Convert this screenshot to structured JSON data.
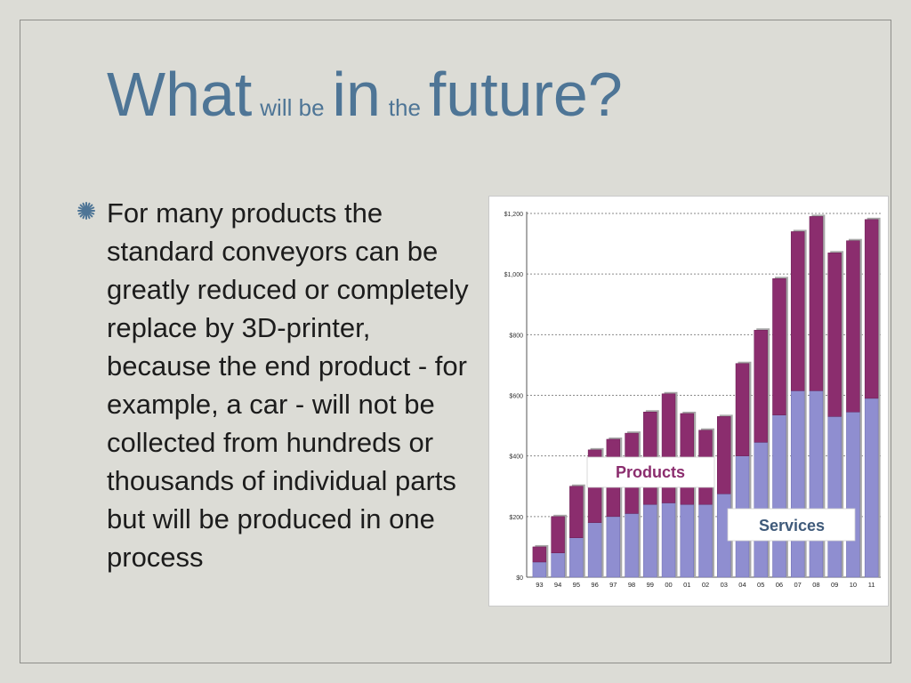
{
  "slide": {
    "title_parts": [
      "What",
      "will be",
      "in",
      "the",
      "future?"
    ],
    "bullet_icon": "asterisk-bullet-icon",
    "bullet_text": "For many products the standard conveyors can be greatly reduced or completely replace by 3D-printer, because the end product - for example, a car - will not be collected from hundreds or thousands of individual parts but will be produced in one process"
  },
  "colors": {
    "title": "#4e7596",
    "products": "#8b2d6e",
    "services": "#8f8ed0",
    "background": "#dcdcd6"
  },
  "chart_data": {
    "type": "bar",
    "stacked": true,
    "categories": [
      "93",
      "94",
      "95",
      "96",
      "97",
      "98",
      "99",
      "00",
      "01",
      "02",
      "03",
      "04",
      "05",
      "06",
      "07",
      "08",
      "09",
      "10",
      "11"
    ],
    "y_tick_labels": [
      "$0",
      "$200",
      "$400",
      "$600",
      "$800",
      "$1,000",
      "$1,200"
    ],
    "ylim": [
      0,
      1200
    ],
    "series": [
      {
        "name": "Services",
        "values": [
          50,
          80,
          130,
          180,
          200,
          210,
          240,
          245,
          240,
          240,
          275,
          400,
          445,
          535,
          615,
          615,
          530,
          545,
          590
        ]
      },
      {
        "name": "Products",
        "values": [
          50,
          120,
          170,
          240,
          255,
          265,
          305,
          360,
          300,
          245,
          255,
          305,
          370,
          450,
          525,
          575,
          540,
          565,
          590
        ]
      }
    ],
    "legend": {
      "products_label": "Products",
      "services_label": "Services"
    },
    "grid": true
  }
}
